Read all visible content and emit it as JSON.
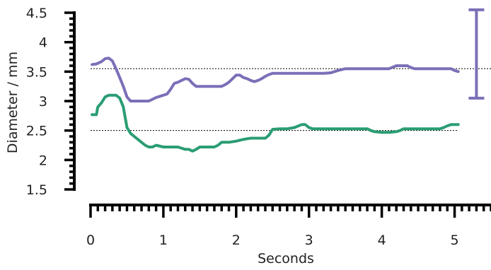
{
  "chart_data": {
    "type": "line",
    "title": "",
    "xlabel": "Seconds",
    "ylabel": "Diameter / mm",
    "xlim": [
      0,
      5.5
    ],
    "ylim": [
      1.5,
      4.5
    ],
    "x_ticks": [
      0,
      1,
      2,
      3,
      4,
      5
    ],
    "x_minor_step": 0.1,
    "y_ticks": [
      1.5,
      2,
      2.5,
      3,
      3.5,
      4,
      4.5
    ],
    "y_tick_labels": [
      "1.5",
      "2",
      "2.5",
      "3",
      "3.5",
      "4",
      "4.5"
    ],
    "y_minor_step": 0.1,
    "grid": false,
    "series": [
      {
        "color": "#7b6fb8",
        "x": [
          0.02,
          0.08,
          0.15,
          0.2,
          0.25,
          0.3,
          0.35,
          0.4,
          0.45,
          0.5,
          0.55,
          0.6,
          0.7,
          0.8,
          0.9,
          1.0,
          1.05,
          1.1,
          1.15,
          1.2,
          1.25,
          1.3,
          1.35,
          1.4,
          1.45,
          1.5,
          1.6,
          1.7,
          1.8,
          1.85,
          1.9,
          1.95,
          2.0,
          2.05,
          2.1,
          2.15,
          2.2,
          2.25,
          2.3,
          2.35,
          2.4,
          2.45,
          2.5,
          2.6,
          2.7,
          2.8,
          2.9,
          3.0,
          3.1,
          3.2,
          3.3,
          3.4,
          3.5,
          3.6,
          3.7,
          3.8,
          3.9,
          4.0,
          4.1,
          4.2,
          4.3,
          4.35,
          4.4,
          4.45,
          4.5,
          4.6,
          4.7,
          4.8,
          4.9,
          4.95,
          5.0,
          5.05
        ],
        "y": [
          3.62,
          3.63,
          3.67,
          3.72,
          3.73,
          3.68,
          3.55,
          3.4,
          3.25,
          3.07,
          3.0,
          3.0,
          3.0,
          3.0,
          3.06,
          3.1,
          3.12,
          3.2,
          3.3,
          3.32,
          3.35,
          3.38,
          3.37,
          3.3,
          3.25,
          3.25,
          3.25,
          3.25,
          3.25,
          3.28,
          3.32,
          3.38,
          3.44,
          3.44,
          3.4,
          3.38,
          3.35,
          3.33,
          3.35,
          3.38,
          3.42,
          3.45,
          3.47,
          3.47,
          3.47,
          3.47,
          3.47,
          3.47,
          3.47,
          3.47,
          3.48,
          3.52,
          3.55,
          3.55,
          3.55,
          3.55,
          3.55,
          3.55,
          3.55,
          3.6,
          3.6,
          3.6,
          3.57,
          3.55,
          3.55,
          3.55,
          3.55,
          3.55,
          3.55,
          3.55,
          3.52,
          3.5
        ]
      },
      {
        "color": "#2a9d73",
        "x": [
          0.02,
          0.08,
          0.1,
          0.15,
          0.2,
          0.25,
          0.3,
          0.35,
          0.4,
          0.45,
          0.5,
          0.55,
          0.6,
          0.65,
          0.7,
          0.75,
          0.8,
          0.85,
          0.9,
          1.0,
          1.1,
          1.2,
          1.3,
          1.35,
          1.4,
          1.45,
          1.5,
          1.6,
          1.7,
          1.75,
          1.8,
          1.9,
          2.0,
          2.1,
          2.2,
          2.3,
          2.35,
          2.4,
          2.45,
          2.5,
          2.6,
          2.7,
          2.8,
          2.9,
          2.95,
          3.0,
          3.05,
          3.1,
          3.2,
          3.3,
          3.4,
          3.5,
          3.6,
          3.7,
          3.8,
          3.85,
          3.9,
          4.0,
          4.1,
          4.2,
          4.25,
          4.3,
          4.4,
          4.5,
          4.6,
          4.7,
          4.8,
          4.85,
          4.9,
          4.95,
          5.0,
          5.05
        ],
        "y": [
          2.77,
          2.77,
          2.9,
          2.97,
          3.07,
          3.1,
          3.1,
          3.1,
          3.05,
          2.9,
          2.55,
          2.45,
          2.4,
          2.35,
          2.3,
          2.25,
          2.22,
          2.22,
          2.25,
          2.22,
          2.22,
          2.22,
          2.18,
          2.18,
          2.15,
          2.18,
          2.22,
          2.22,
          2.22,
          2.25,
          2.3,
          2.3,
          2.32,
          2.35,
          2.37,
          2.37,
          2.37,
          2.37,
          2.42,
          2.52,
          2.53,
          2.53,
          2.55,
          2.6,
          2.6,
          2.55,
          2.53,
          2.53,
          2.53,
          2.53,
          2.53,
          2.53,
          2.53,
          2.53,
          2.53,
          2.5,
          2.48,
          2.47,
          2.47,
          2.48,
          2.5,
          2.53,
          2.53,
          2.53,
          2.53,
          2.53,
          2.53,
          2.55,
          2.58,
          2.6,
          2.6,
          2.6
        ]
      }
    ],
    "reference_lines": [
      {
        "y": 3.55,
        "x_start": 0,
        "x_end": 5.5
      },
      {
        "y": 2.5,
        "x_start": 0,
        "x_end": 5.05
      }
    ],
    "scale_bar": {
      "x": 5.3,
      "y_from": 3.05,
      "y_to": 4.55,
      "color": "#7b6fb8"
    }
  }
}
